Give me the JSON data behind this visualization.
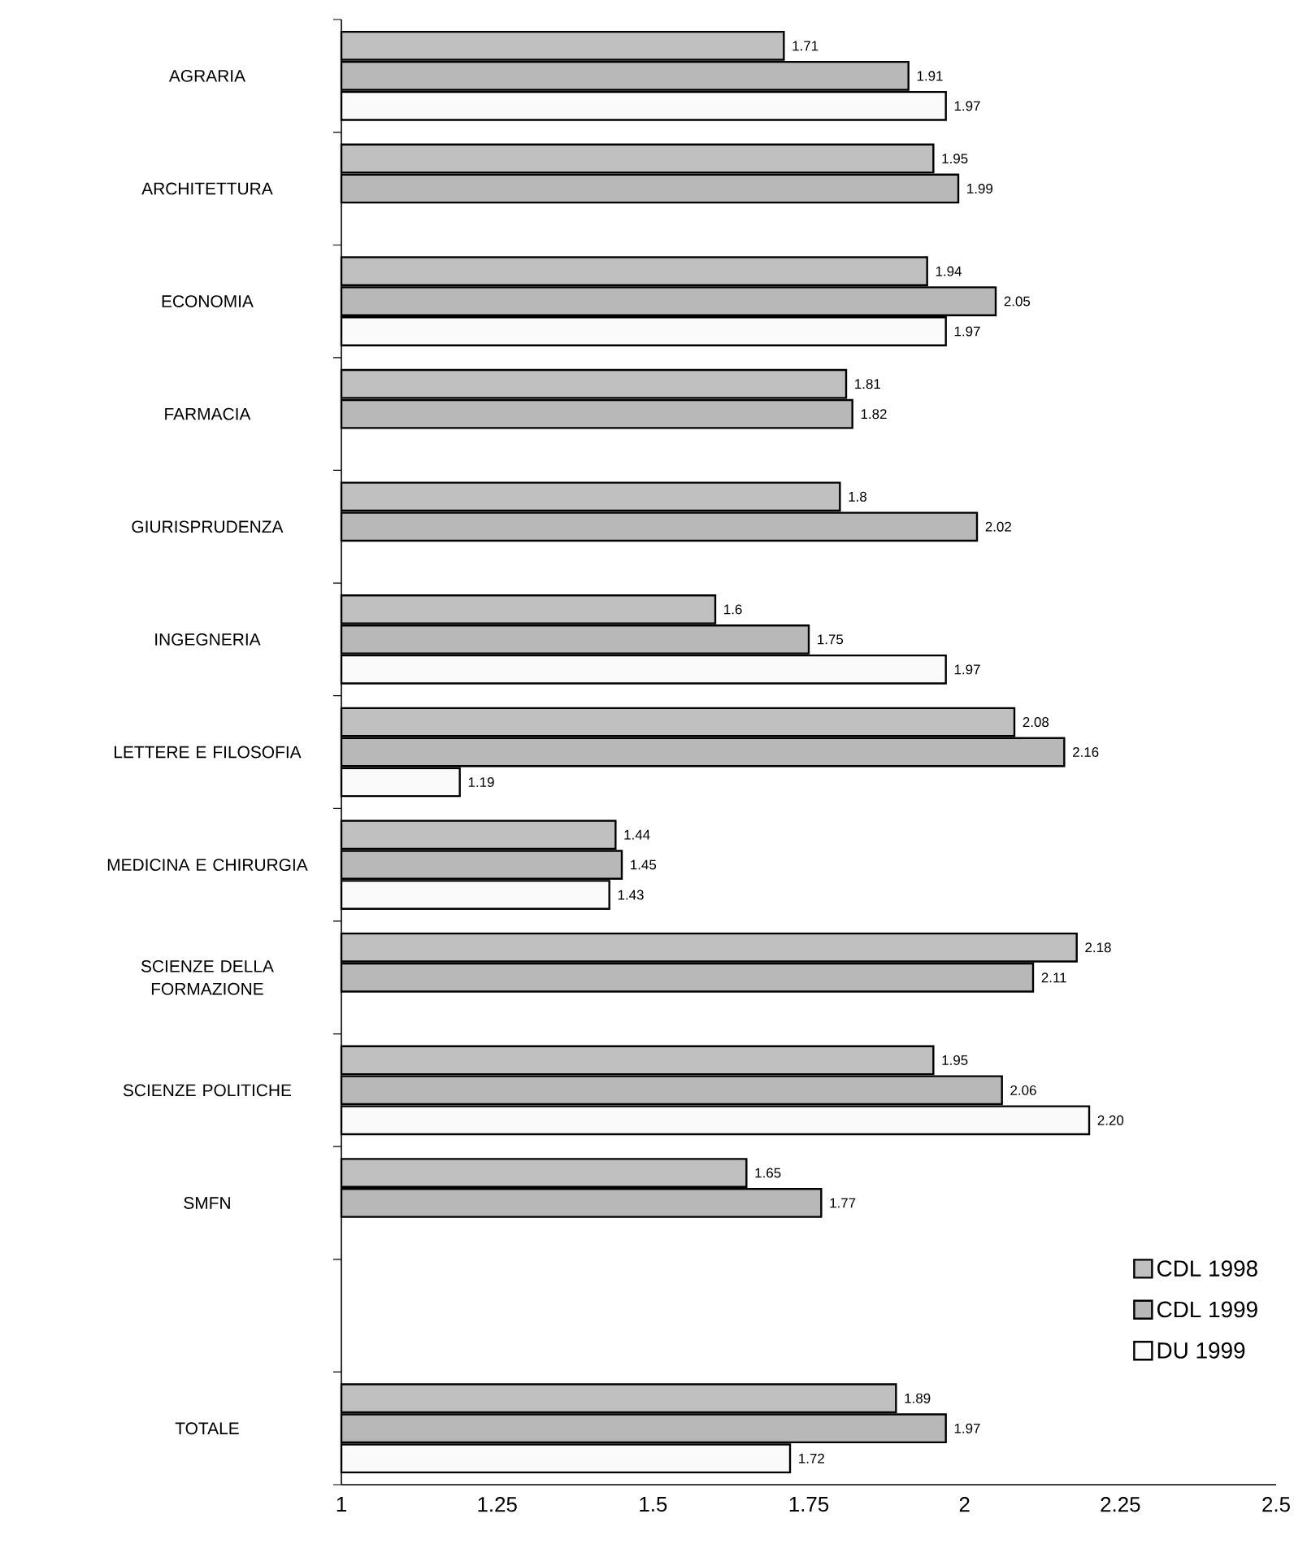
{
  "chart_data": {
    "type": "bar",
    "orientation": "horizontal",
    "categories": [
      "AGRARIA",
      "ARCHITETTURA",
      "ECONOMIA",
      "FARMACIA",
      "GIURISPRUDENZA",
      "INGEGNERIA",
      "LETTERE E FILOSOFIA",
      "MEDICINA E CHIRURGIA",
      "SCIENZE DELLA FORMAZIONE",
      "SCIENZE POLITICHE",
      "SMFN",
      null,
      "TOTALE"
    ],
    "series": [
      {
        "name": "CDL 1998",
        "color": "#c0c0c0",
        "values": [
          1.71,
          1.95,
          1.94,
          1.81,
          1.8,
          1.6,
          2.08,
          1.44,
          2.18,
          1.95,
          1.65,
          null,
          1.89
        ],
        "value_labels": [
          "1.71",
          "1.95",
          "1.94",
          "1.81",
          "1.8",
          "1.6",
          "2.08",
          "1.44",
          "2.18",
          "1.95",
          "1.65",
          null,
          "1.89"
        ]
      },
      {
        "name": "CDL 1999",
        "color": "#b8b8b8",
        "values": [
          1.91,
          1.99,
          2.05,
          1.82,
          2.02,
          1.75,
          2.16,
          1.45,
          2.11,
          2.06,
          1.77,
          null,
          1.97
        ],
        "value_labels": [
          "1.91",
          "1.99",
          "2.05",
          "1.82",
          "2.02",
          "1.75",
          "2.16",
          "1.45",
          "2.11",
          "2.06",
          "1.77",
          null,
          "1.97"
        ]
      },
      {
        "name": "DU 1999",
        "color": "#fafafa",
        "values": [
          1.97,
          null,
          1.97,
          null,
          null,
          1.97,
          1.19,
          1.43,
          null,
          2.2,
          null,
          null,
          1.72
        ],
        "value_labels": [
          "1.97",
          null,
          "1.97",
          null,
          null,
          "1.97",
          "1.19",
          "1.43",
          null,
          "2.20",
          null,
          null,
          "1.72"
        ]
      }
    ],
    "xlim": [
      1,
      2.5
    ],
    "xticks": [
      1,
      1.25,
      1.5,
      1.75,
      2,
      2.25,
      2.5
    ],
    "grid": false,
    "legend": "bottom right"
  }
}
